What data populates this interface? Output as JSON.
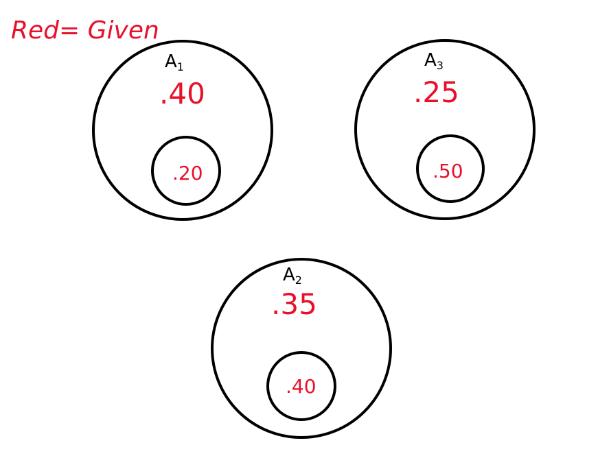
{
  "legend": {
    "text": "Red= Given",
    "color": "#e8102a"
  },
  "colors": {
    "given": "#e8102a",
    "outline": "#000000",
    "background": "#ffffff"
  },
  "events": [
    {
      "label_main": "A",
      "label_sub": "1",
      "outer_value": ".40",
      "inner_value": ".20"
    },
    {
      "label_main": "A",
      "label_sub": "3",
      "outer_value": ".25",
      "inner_value": ".50"
    },
    {
      "label_main": "A",
      "label_sub": "2",
      "outer_value": ".35",
      "inner_value": ".40"
    }
  ]
}
